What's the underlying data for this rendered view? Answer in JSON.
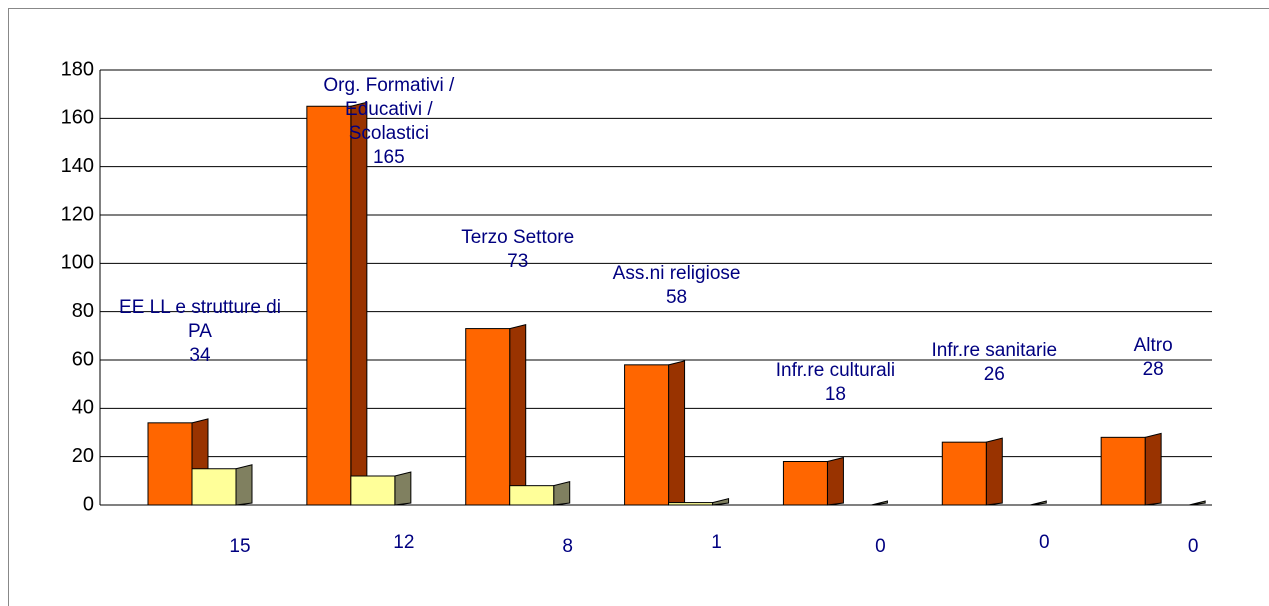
{
  "chart_data": {
    "type": "bar3d",
    "categories": [
      "EE LL e strutture di PA",
      "Org. Formativi / Educativi / Scolastici",
      "Terzo Settore",
      "Ass.ni religiose",
      "Infr.re culturali",
      "Infr.re sanitarie",
      "Altro"
    ],
    "series": [
      {
        "color": "#ff6600",
        "values": [
          34,
          165,
          73,
          58,
          18,
          26,
          28
        ]
      },
      {
        "color": "#ffff99",
        "values": [
          15,
          12,
          8,
          1,
          0,
          0,
          0
        ]
      }
    ],
    "ylim": [
      0,
      180
    ],
    "yticks": [
      0,
      20,
      40,
      60,
      80,
      100,
      120,
      140,
      160,
      180
    ],
    "grid": true
  }
}
